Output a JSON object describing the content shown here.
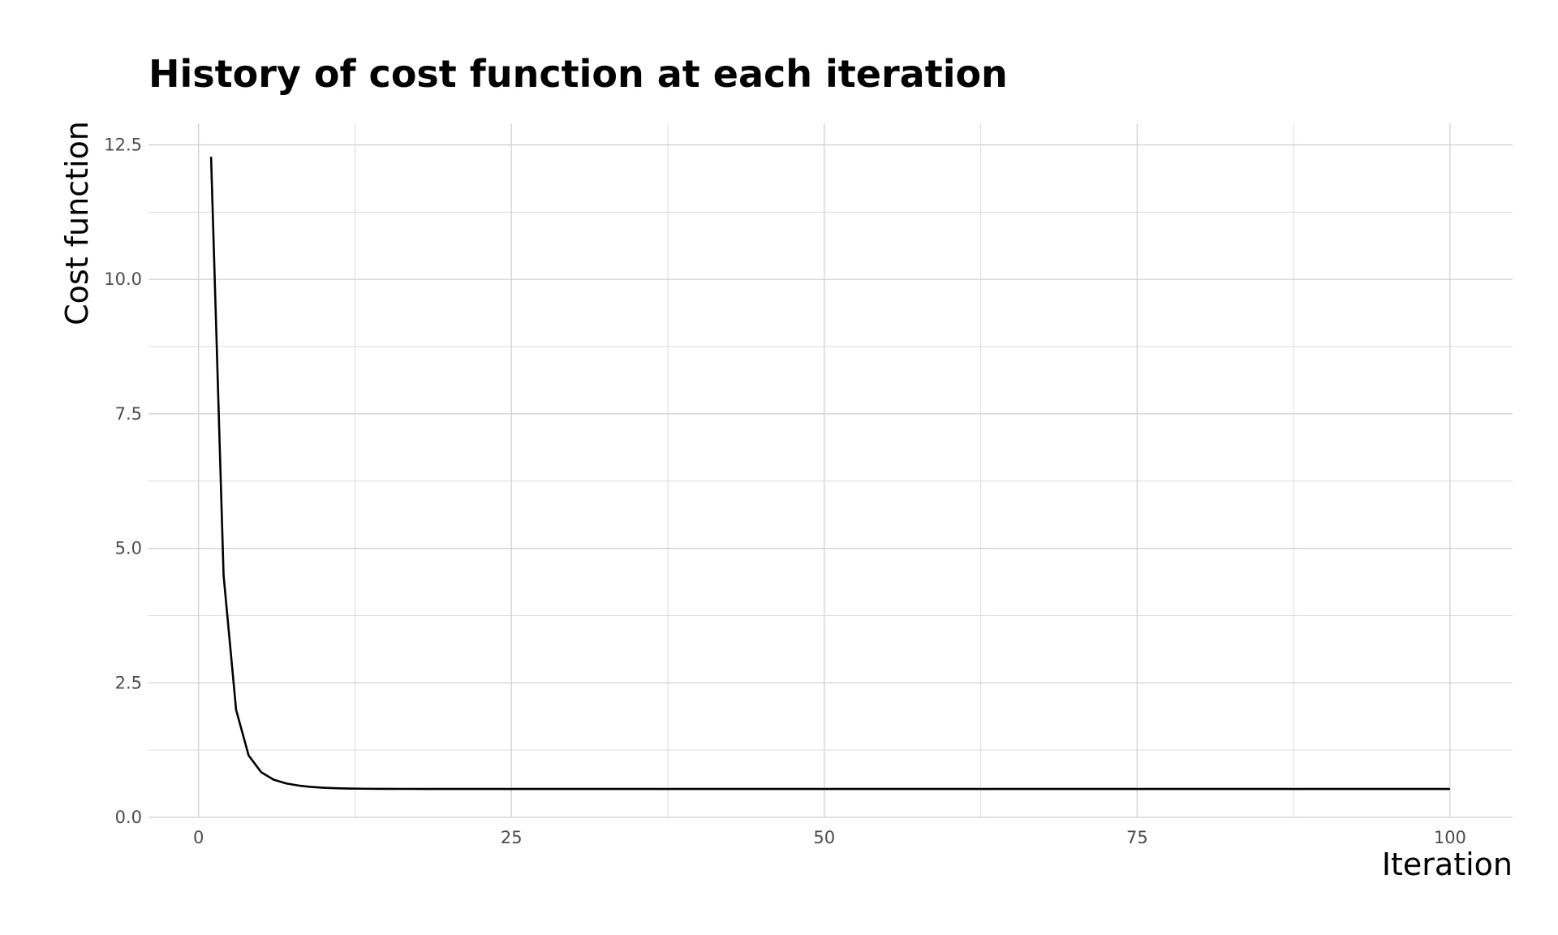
{
  "chart_data": {
    "type": "line",
    "title": "History of cost function at each iteration",
    "xlabel": "Iteration",
    "ylabel": "Cost function",
    "xlim": [
      -4,
      105
    ],
    "ylim": [
      0,
      12.9
    ],
    "x_ticks": [
      0,
      25,
      50,
      75,
      100
    ],
    "x_tick_labels": [
      "0",
      "25",
      "50",
      "75",
      "100"
    ],
    "y_ticks": [
      0,
      2.5,
      5,
      7.5,
      10,
      12.5
    ],
    "y_tick_labels": [
      "0.0",
      "2.5",
      "5.0",
      "7.5",
      "10.0",
      "12.5"
    ],
    "grid": true,
    "line_color": "#000000",
    "series": [
      {
        "x": [
          1,
          2,
          3,
          4,
          5,
          6,
          7,
          8,
          9,
          10,
          11,
          12,
          13,
          14,
          15,
          16,
          17,
          18,
          19,
          20,
          25,
          30,
          40,
          50,
          60,
          70,
          80,
          90,
          100
        ],
        "values": [
          12.28,
          4.5,
          2.0,
          1.15,
          0.84,
          0.7,
          0.63,
          0.59,
          0.565,
          0.55,
          0.54,
          0.535,
          0.532,
          0.53,
          0.529,
          0.528,
          0.528,
          0.527,
          0.527,
          0.527,
          0.527,
          0.527,
          0.527,
          0.527,
          0.527,
          0.527,
          0.527,
          0.527,
          0.527
        ]
      }
    ]
  }
}
